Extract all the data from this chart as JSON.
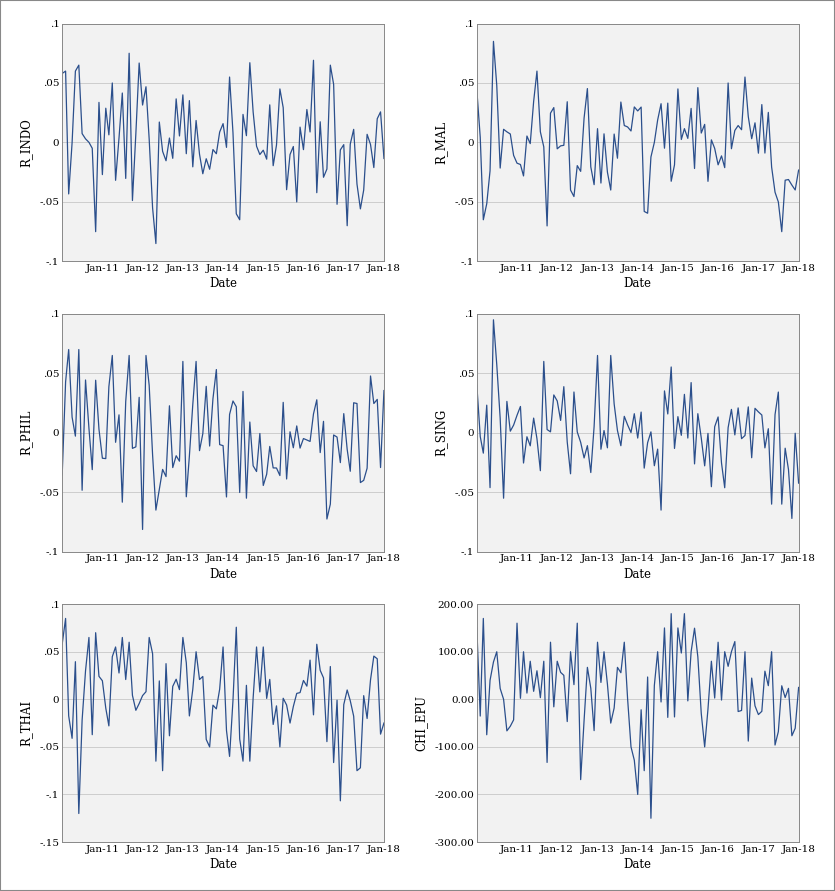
{
  "line_color": "#2B4F8C",
  "line_width": 0.9,
  "bg_color": "#f2f2f2",
  "panel_bg": "#f2f2f2",
  "outer_bg": "#ffffff",
  "panels": [
    {
      "ylabel": "R_INDO",
      "ylim": [
        -0.1,
        0.1
      ],
      "yticks": [
        -0.1,
        -0.05,
        0.0,
        0.05,
        0.1
      ],
      "ytick_labels": [
        "-.1",
        "-.05",
        "0",
        ".05",
        ".1"
      ]
    },
    {
      "ylabel": "R_MAL",
      "ylim": [
        -0.1,
        0.1
      ],
      "yticks": [
        -0.1,
        -0.05,
        0.0,
        0.05,
        0.1
      ],
      "ytick_labels": [
        "-.1",
        "-.05",
        "0",
        ".05",
        ".1"
      ]
    },
    {
      "ylabel": "R_PHIL",
      "ylim": [
        -0.1,
        0.1
      ],
      "yticks": [
        -0.1,
        -0.05,
        0.0,
        0.05,
        0.1
      ],
      "ytick_labels": [
        "-.1",
        "-.05",
        "0",
        ".05",
        ".1"
      ]
    },
    {
      "ylabel": "R_SING",
      "ylim": [
        -0.1,
        0.1
      ],
      "yticks": [
        -0.1,
        -0.05,
        0.0,
        0.05,
        0.1
      ],
      "ytick_labels": [
        "-.1",
        "-.05",
        "0",
        ".05",
        ".1"
      ]
    },
    {
      "ylabel": "R_THAI",
      "ylim": [
        -0.15,
        0.1
      ],
      "yticks": [
        -0.15,
        -0.1,
        -0.05,
        0.0,
        0.05,
        0.1
      ],
      "ytick_labels": [
        "-.15",
        "-.1",
        "-.05",
        "0",
        ".05",
        ".1"
      ]
    },
    {
      "ylabel": "CHI_EPU",
      "ylim": [
        -300,
        200
      ],
      "yticks": [
        -300.0,
        -200.0,
        -100.0,
        0.0,
        100.0,
        200.0
      ],
      "ytick_labels": [
        "-300.00",
        "-200.00",
        "-100.00",
        "0.00",
        "100.00",
        "200.00"
      ]
    }
  ],
  "xlabel": "Date",
  "xtick_labels": [
    "Jan-11",
    "Jan-12",
    "Jan-13",
    "Jan-14",
    "Jan-15",
    "Jan-16",
    "Jan-17",
    "Jan-18"
  ]
}
